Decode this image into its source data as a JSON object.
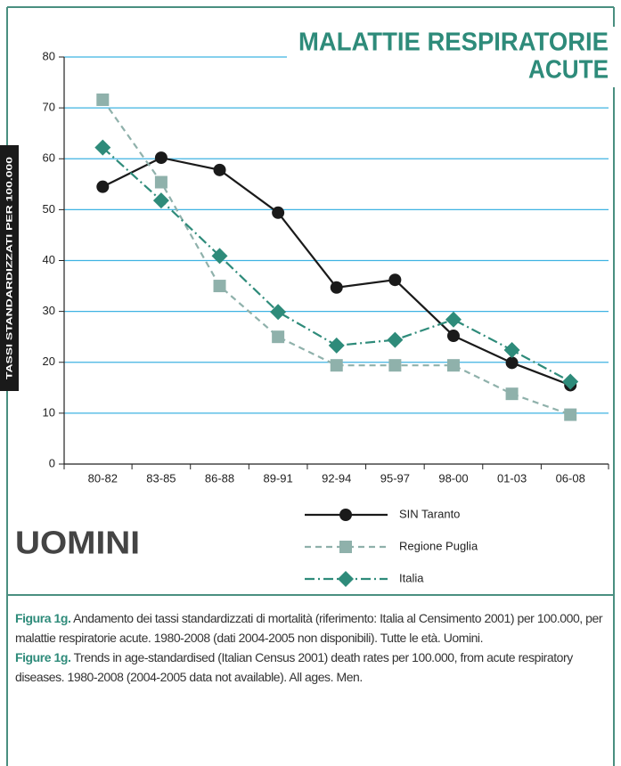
{
  "chart_data": {
    "type": "line",
    "title": [
      "MALATTIE RESPIRATORIE",
      "ACUTE"
    ],
    "ylabel": "TASSI STANDARDIZZATI PER 100.000",
    "annotation": "UOMINI",
    "categories": [
      "80-82",
      "83-85",
      "86-88",
      "89-91",
      "92-94",
      "95-97",
      "98-00",
      "01-03",
      "06-08"
    ],
    "series": [
      {
        "name": "SIN Taranto",
        "color": "#1a1a1a",
        "marker": "circle",
        "dash": "solid",
        "values": [
          54.5,
          60.2,
          57.8,
          49.4,
          34.7,
          36.2,
          25.2,
          19.9,
          15.5
        ]
      },
      {
        "name": "Regione Puglia",
        "color": "#8fb1ab",
        "marker": "square",
        "dash": "dashed",
        "values": [
          71.6,
          55.4,
          35.0,
          25.0,
          19.4,
          19.4,
          19.4,
          13.8,
          9.7
        ]
      },
      {
        "name": "Italia",
        "color": "#2e8b7a",
        "marker": "diamond",
        "dash": "dashdot",
        "values": [
          62.2,
          51.8,
          40.9,
          29.9,
          23.3,
          24.4,
          28.4,
          22.4,
          16.2
        ]
      }
    ],
    "ylim": [
      0,
      80
    ],
    "yticks": [
      0,
      10,
      20,
      30,
      40,
      50,
      60,
      70,
      80
    ],
    "grid": true,
    "grid_color": "#3fb3e2"
  },
  "caption": {
    "it_label": "Figura 1g.",
    "it_text": "Andamento dei tassi standardizzati di mortalità (riferimento: Italia al Censimento 2001) per 100.000, per malattie respiratorie acute. 1980-2008 (dati 2004-2005 non disponibili). Tutte le età. Uomini.",
    "en_label": "Figure 1g.",
    "en_text": "Trends in age-standardised (Italian Census 2001) death rates per 100.000, from acute respiratory diseases. 1980-2008 (2004-2005 data not available). All ages. Men."
  }
}
